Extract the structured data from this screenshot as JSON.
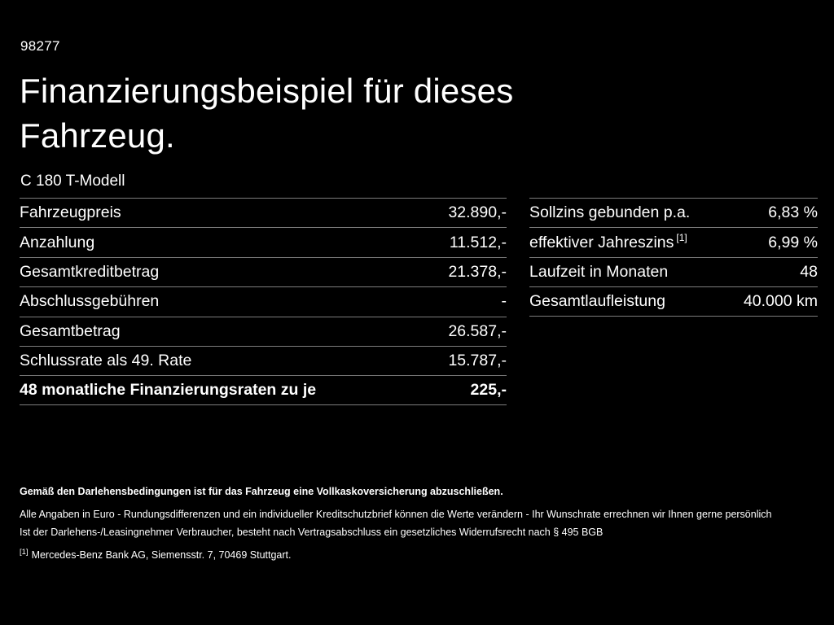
{
  "page": {
    "reference": "98277",
    "title_line1": "Finanzierungsbeispiel für dieses",
    "title_line2": "Fahrzeug.",
    "model": "C 180 T-Modell"
  },
  "left_table": {
    "rows": [
      {
        "label": "Fahrzeugpreis",
        "value": "32.890,-"
      },
      {
        "label": "Anzahlung",
        "value": "11.512,-"
      },
      {
        "label": "Gesamtkreditbetrag",
        "value": "21.378,-"
      },
      {
        "label": "Abschlussgebühren",
        "value": "-"
      },
      {
        "label": "Gesamtbetrag",
        "value": "26.587,-"
      },
      {
        "label": "Schlussrate als 49. Rate",
        "value": "15.787,-"
      },
      {
        "label": "48 monatliche Finanzierungsraten zu je",
        "value": "225,-"
      }
    ]
  },
  "right_table": {
    "rows": [
      {
        "label": "Sollzins gebunden p.a.",
        "value": "6,83 %"
      },
      {
        "label": "effektiver Jahreszins",
        "marker": "[1]",
        "value": "6,99 %"
      },
      {
        "label": "Laufzeit in Monaten",
        "value": "48"
      },
      {
        "label": "Gesamtlaufleistung",
        "value": "40.000 km"
      }
    ]
  },
  "footer": {
    "bold_line": "Gemäß den Darlehensbedingungen ist für das Fahrzeug eine Vollkaskoversicherung abzuschließen.",
    "line2": "Alle Angaben in Euro - Rundungsdifferenzen und ein individueller Kreditschutzbrief können die Werte verändern - Ihr Wunschrate errechnen wir Ihnen gerne persönlich",
    "line3": "Ist der Darlehens-/Leasingnehmer Verbraucher, besteht nach Vertragsabschluss ein gesetzliches Widerrufsrecht nach § 495 BGB",
    "footnote_marker": "[1]",
    "footnote_text": "Mercedes-Benz Bank AG, Siemensstr. 7, 70469 Stuttgart."
  }
}
